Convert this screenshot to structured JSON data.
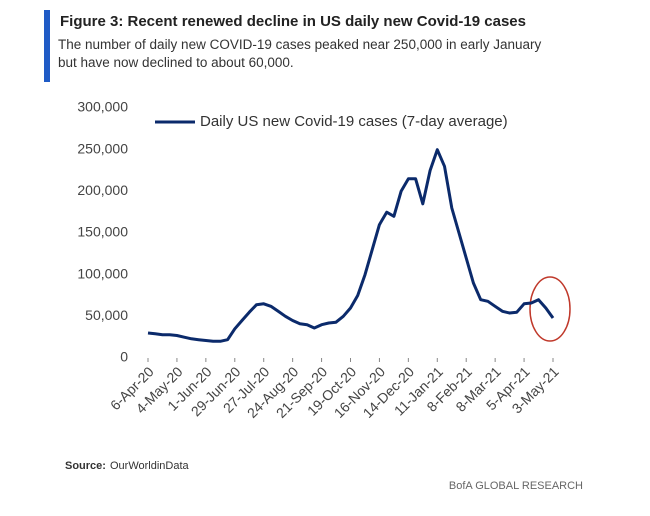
{
  "chart_data": {
    "type": "line",
    "title": "Figure 3: Recent renewed decline in US daily new Covid-19 cases",
    "subtitle": "The number of daily new COVID-19 cases peaked near 250,000 in early January but have now declined to about 60,000.",
    "categories": [
      "6-Apr-20",
      null,
      null,
      null,
      "4-May-20",
      null,
      null,
      null,
      "1-Jun-20",
      null,
      null,
      null,
      "29-Jun-20",
      null,
      null,
      null,
      "27-Jul-20",
      null,
      null,
      null,
      "24-Aug-20",
      null,
      null,
      null,
      "21-Sep-20",
      null,
      null,
      null,
      "19-Oct-20",
      null,
      null,
      null,
      "16-Nov-20",
      null,
      null,
      null,
      "14-Dec-20",
      null,
      null,
      null,
      "11-Jan-21",
      null,
      null,
      null,
      "8-Feb-21",
      null,
      null,
      null,
      "8-Mar-21",
      null,
      null,
      null,
      "5-Apr-21",
      null,
      null,
      null,
      "3-May-21"
    ],
    "series": [
      {
        "name": "Daily US new Covid-19 cases (7-day average)",
        "color": "#0b2a6b",
        "values": [
          30000,
          29000,
          28000,
          28000,
          27000,
          25000,
          23000,
          22000,
          21000,
          20000,
          20000,
          22000,
          35000,
          45000,
          55000,
          64000,
          65000,
          62000,
          56000,
          50000,
          45000,
          41000,
          40000,
          36000,
          40000,
          42000,
          43000,
          50000,
          60000,
          75000,
          100000,
          130000,
          160000,
          175000,
          170000,
          200000,
          215000,
          215000,
          185000,
          225000,
          250000,
          230000,
          180000,
          150000,
          120000,
          90000,
          70000,
          68000,
          62000,
          56000,
          54000,
          55000,
          65000,
          66000,
          70000,
          60000,
          48000
        ]
      }
    ],
    "ylim": [
      0,
      300000
    ],
    "yticks": [
      0,
      {
        "value": 50000,
        "label": "50,000"
      },
      {
        "value": 100000,
        "label": "100,000"
      },
      {
        "value": 150000,
        "label": "150,000"
      },
      {
        "value": 200000,
        "label": "200,000"
      },
      {
        "value": 250000,
        "label": "250,000"
      },
      {
        "value": 300000,
        "label": "300,000"
      }
    ],
    "grid": false,
    "source_label": "Source:",
    "source": "OurWorldinData",
    "footer": "BofA GLOBAL RESEARCH"
  }
}
